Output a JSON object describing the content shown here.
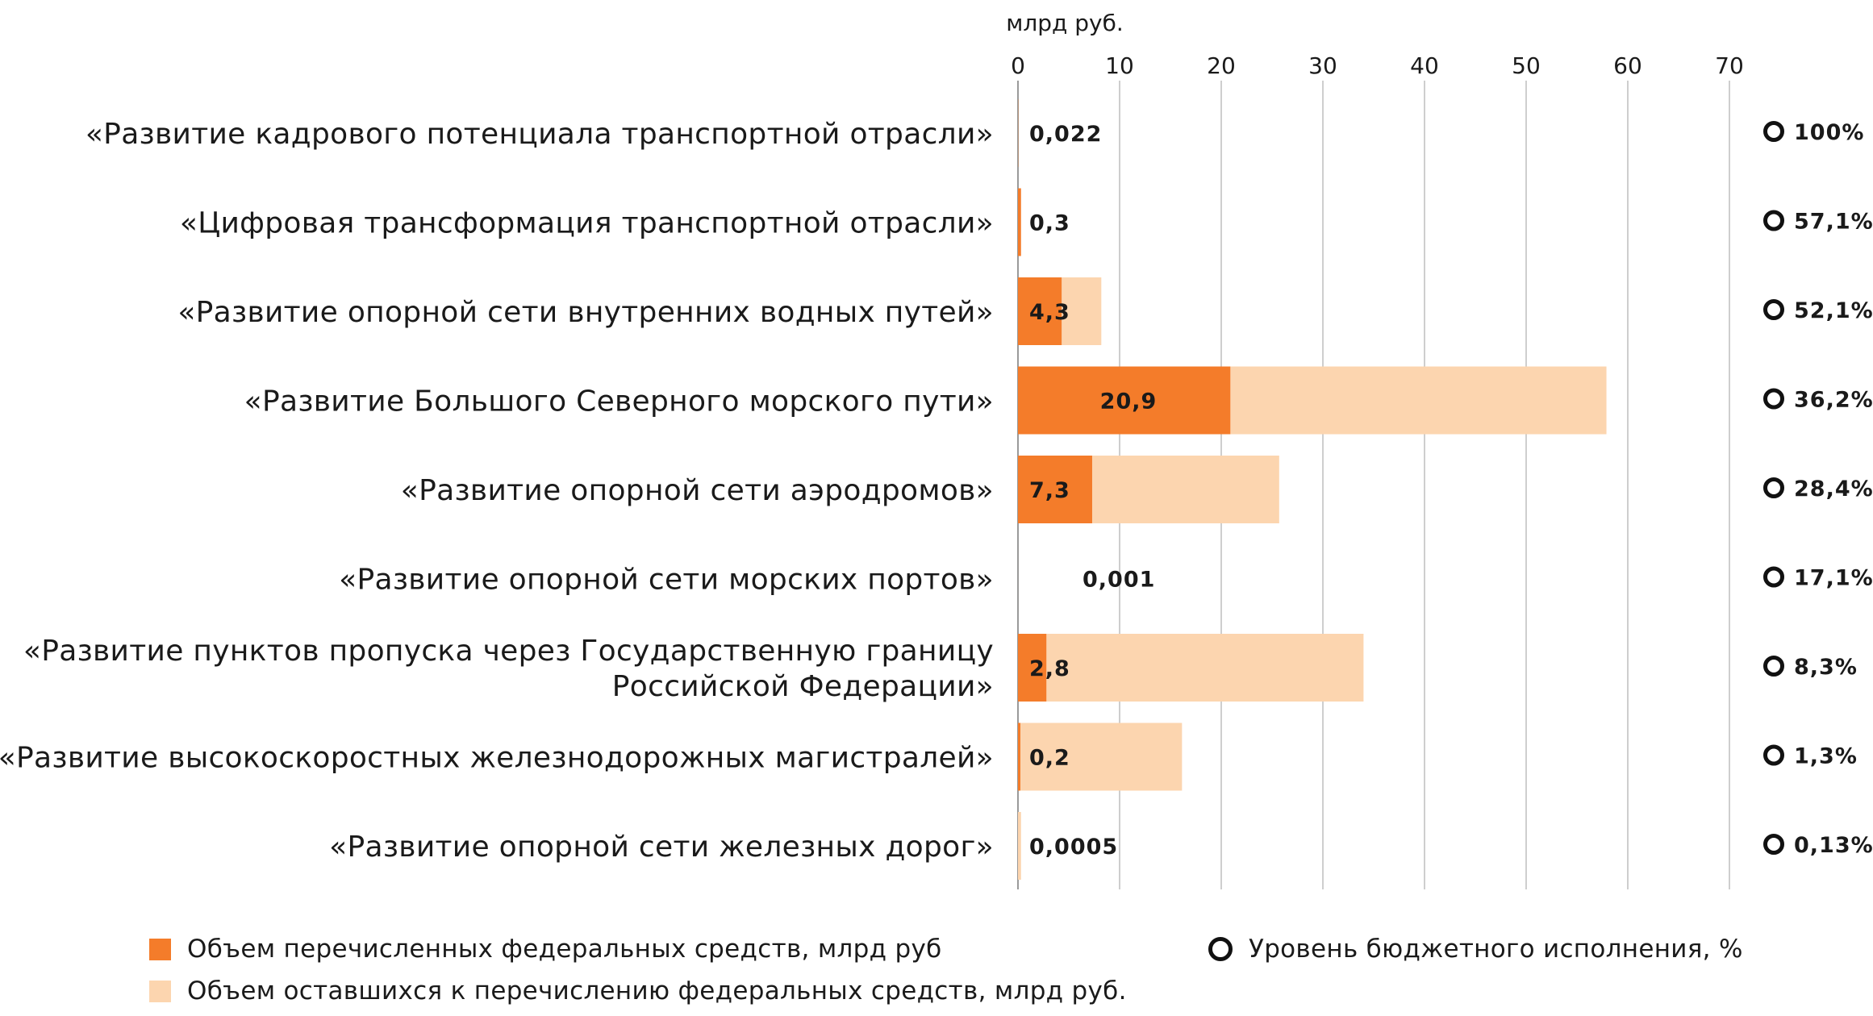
{
  "chart_data": {
    "type": "bar",
    "orientation": "horizontal",
    "stacked": true,
    "unit_label": "млрд руб.",
    "xlim": [
      0,
      70
    ],
    "ticks": [
      "0",
      "10",
      "20",
      "30",
      "40",
      "50",
      "60",
      "70"
    ],
    "grid": true,
    "colors": {
      "transferred": "#F47C2A",
      "remaining": "#FCD5AF",
      "marker": "#111111"
    },
    "categories": [
      [
        "«Развитие кадрового потенциала транспортной отрасли»"
      ],
      [
        "«Цифровая трансформация транспортной отрасли»"
      ],
      [
        "«Развитие опорной сети внутренних водных путей»"
      ],
      [
        "«Развитие Большого Северного морского пути»"
      ],
      [
        "«Развитие опорной сети аэродромов»"
      ],
      [
        "«Развитие опорной сети морских портов»"
      ],
      [
        "«Развитие пунктов пропуска через Государственную границу",
        "Российской Федерации»"
      ],
      [
        "«Развитие высокоскоростных железнодорожных магистралей»"
      ],
      [
        "«Развитие опорной сети железных дорог»"
      ]
    ],
    "series": [
      {
        "name": "Объем перечисленных федеральных средств, млрд руб",
        "values": [
          0.022,
          0.3,
          4.3,
          20.9,
          7.3,
          0.001,
          2.8,
          0.2,
          0.0005
        ]
      },
      {
        "name": "Объем оставшихся к перечислению федеральных средств, млрд руб.",
        "values": [
          0,
          0,
          3.9,
          37.0,
          18.4,
          0,
          31.2,
          15.9,
          0.3
        ]
      }
    ],
    "value_labels": [
      "0,022",
      "0,3",
      "4,3",
      "20,9",
      "7,3",
      "0,001",
      "2,8",
      "0,2",
      "0,0005"
    ],
    "budget_execution": {
      "name": "Уровень бюджетного исполнения, %",
      "values": [
        100,
        57.1,
        52.1,
        36.2,
        28.4,
        17.1,
        8.3,
        1.3,
        0.13
      ],
      "labels": [
        "100%",
        "57,1%",
        "52,1%",
        "36,2%",
        "28,4%",
        "17,1%",
        "8,3%",
        "1,3%",
        "0,13%"
      ]
    },
    "legend_position": "bottom"
  }
}
